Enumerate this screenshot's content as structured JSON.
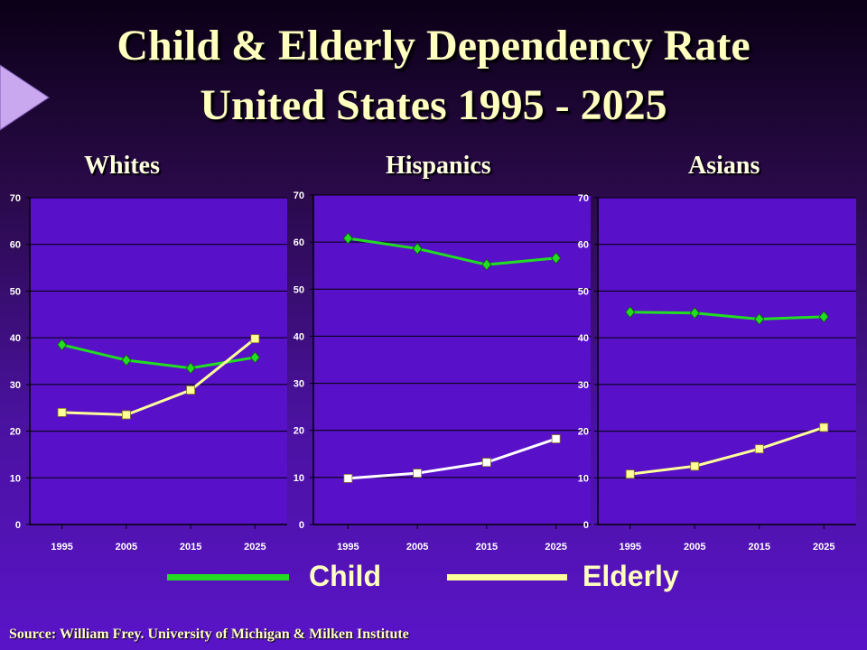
{
  "title_line1": "Child & Elderly Dependency Rate",
  "title_line2": "United States 1995 - 2025",
  "legend": {
    "child_label": "Child",
    "elderly_label": "Elderly",
    "child_color": "#22dd22",
    "elderly_color": "#ffff99"
  },
  "source": "Source: William Frey. University of Michigan & Milken Institute",
  "chart_data": [
    {
      "type": "line",
      "title": "Whites",
      "categories": [
        "1995",
        "2005",
        "2015",
        "2025"
      ],
      "ylim": [
        0,
        70
      ],
      "yticks": [
        0,
        10,
        20,
        30,
        40,
        50,
        60,
        70
      ],
      "series": [
        {
          "name": "Child",
          "values": [
            38.5,
            35.2,
            33.5,
            35.8
          ],
          "color": "#22dd22",
          "marker": "diamond"
        },
        {
          "name": "Elderly",
          "values": [
            24.0,
            23.5,
            28.8,
            39.8
          ],
          "color": "#ffff99",
          "marker": "square"
        }
      ]
    },
    {
      "type": "line",
      "title": "Hispanics",
      "categories": [
        "1995",
        "2005",
        "2015",
        "2025"
      ],
      "ylim": [
        0,
        70
      ],
      "yticks": [
        0,
        10,
        20,
        30,
        40,
        50,
        60,
        70
      ],
      "series": [
        {
          "name": "Child",
          "values": [
            60.8,
            58.6,
            55.2,
            56.6
          ],
          "color": "#22dd22",
          "marker": "diamond"
        },
        {
          "name": "Elderly",
          "values": [
            9.8,
            10.9,
            13.2,
            18.2
          ],
          "color": "#ffffff",
          "marker": "square"
        }
      ]
    },
    {
      "type": "line",
      "title": "Asians",
      "categories": [
        "1995",
        "2005",
        "2015",
        "2025"
      ],
      "ylim": [
        0,
        70
      ],
      "yticks": [
        0,
        10,
        20,
        30,
        40,
        50,
        60,
        70
      ],
      "series": [
        {
          "name": "Child",
          "values": [
            45.5,
            45.3,
            44.0,
            44.5
          ],
          "color": "#22dd22",
          "marker": "diamond"
        },
        {
          "name": "Elderly",
          "values": [
            10.8,
            12.5,
            16.2,
            20.8
          ],
          "color": "#ffff99",
          "marker": "square"
        }
      ]
    }
  ]
}
